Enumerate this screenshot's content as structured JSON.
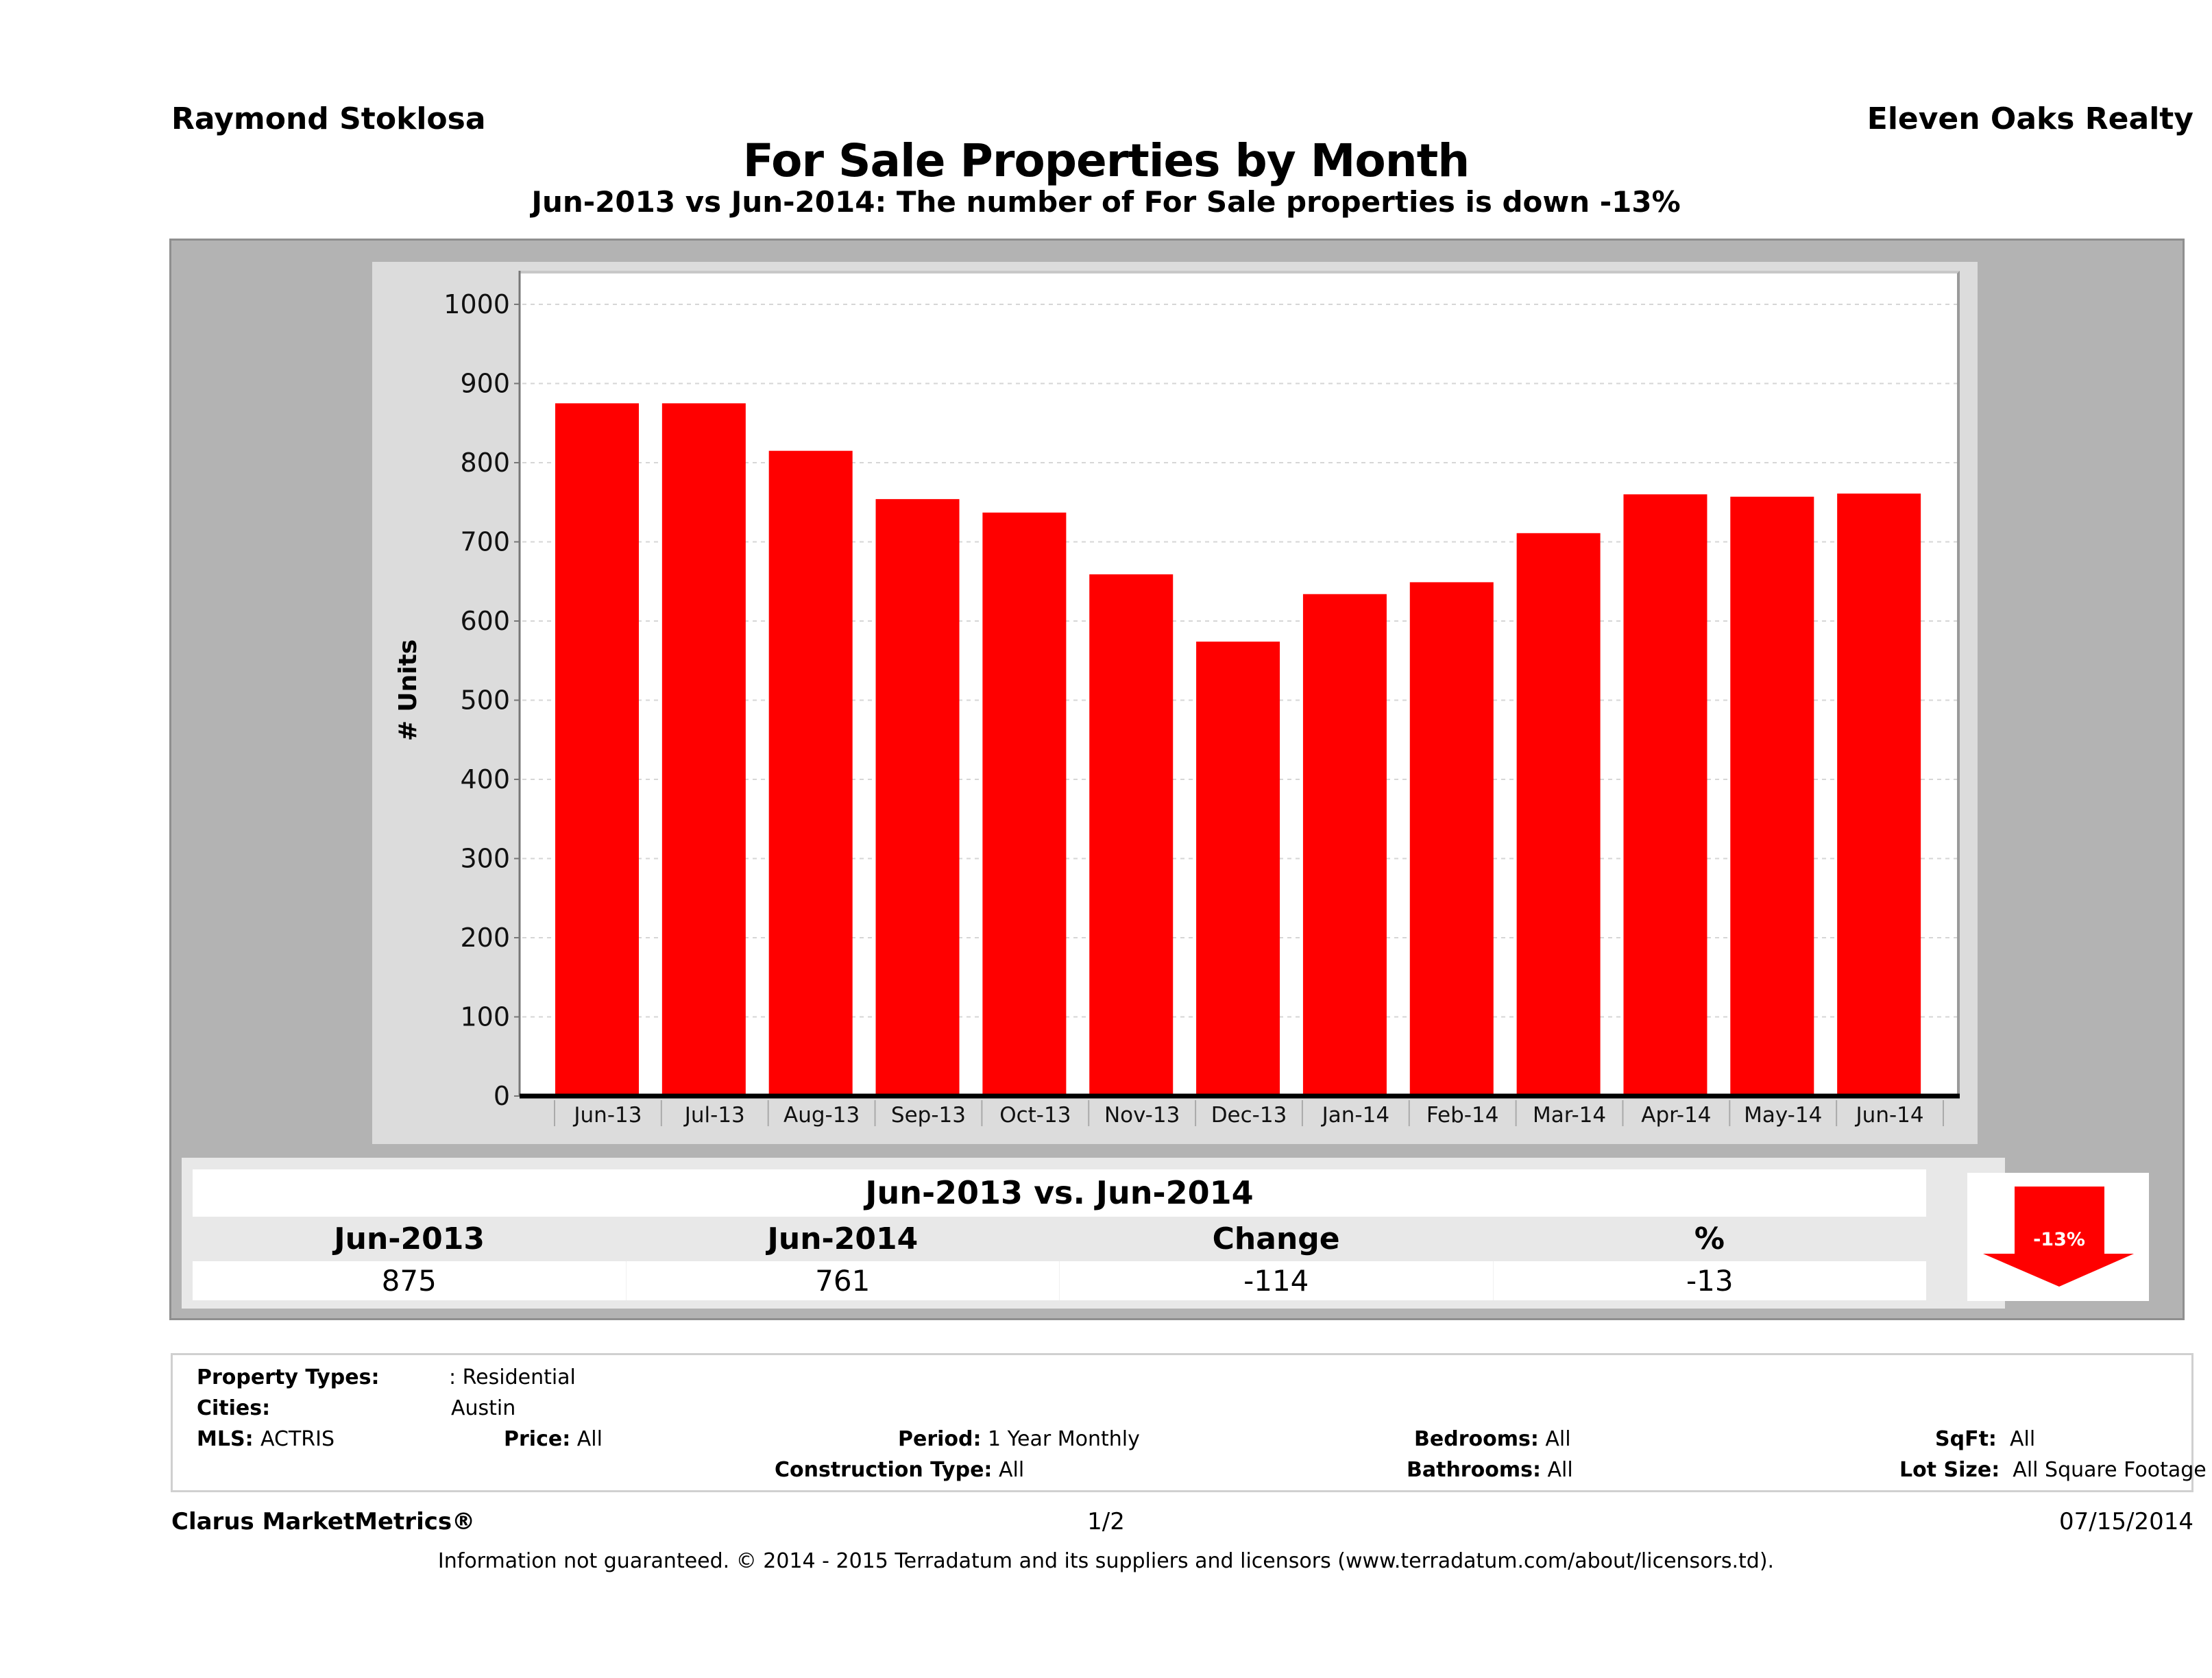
{
  "header": {
    "agent_name": "Raymond Stoklosa",
    "brokerage": "Eleven Oaks Realty",
    "title": "For Sale Properties by Month",
    "subtitle": "Jun-2013 vs Jun-2014: The number of For Sale  properties is down -13%"
  },
  "chart_data": {
    "type": "bar",
    "title": "For Sale Properties by Month",
    "xlabel": "",
    "ylabel": "# Units",
    "ylim": [
      0,
      1000
    ],
    "yticks": [
      0,
      100,
      200,
      300,
      400,
      500,
      600,
      700,
      800,
      900,
      1000
    ],
    "grid": true,
    "bar_color": "#ff0000",
    "categories": [
      "Jun-13",
      "Jul-13",
      "Aug-13",
      "Sep-13",
      "Oct-13",
      "Nov-13",
      "Dec-13",
      "Jan-14",
      "Feb-14",
      "Mar-14",
      "Apr-14",
      "May-14",
      "Jun-14"
    ],
    "values": [
      875,
      875,
      815,
      754,
      737,
      659,
      574,
      634,
      649,
      711,
      760,
      757,
      761
    ]
  },
  "summary": {
    "title": "Jun-2013 vs. Jun-2014",
    "headers": [
      "Jun-2013",
      "Jun-2014",
      "Change",
      "%"
    ],
    "values": [
      "875",
      "761",
      "-114",
      "-13"
    ],
    "badge": {
      "label": "-13%",
      "direction": "down",
      "color": "#ff0000"
    }
  },
  "filters": {
    "property_types_label": "Property Types:",
    "property_types_value": ": Residential",
    "cities_label": "Cities:",
    "cities_value": "Austin",
    "mls_label": "MLS:",
    "mls_value": "ACTRIS",
    "price_label": "Price:",
    "price_value": "All",
    "period_label": "Period:",
    "period_value": "1 Year Monthly",
    "construction_label": "Construction Type:",
    "construction_value": "All",
    "bedrooms_label": "Bedrooms:",
    "bedrooms_value": "All",
    "bathrooms_label": "Bathrooms:",
    "bathrooms_value": "All",
    "sqft_label": "SqFt:",
    "sqft_value": "All",
    "lotsize_label": "Lot Size:",
    "lotsize_value": "All Square Footage"
  },
  "footer": {
    "product": "Clarus MarketMetrics®",
    "page": "1/2",
    "date": "07/15/2014",
    "disclaimer": "Information not guaranteed. © 2014 - 2015 Terradatum and its suppliers and licensors (www.terradatum.com/about/licensors.td)."
  }
}
